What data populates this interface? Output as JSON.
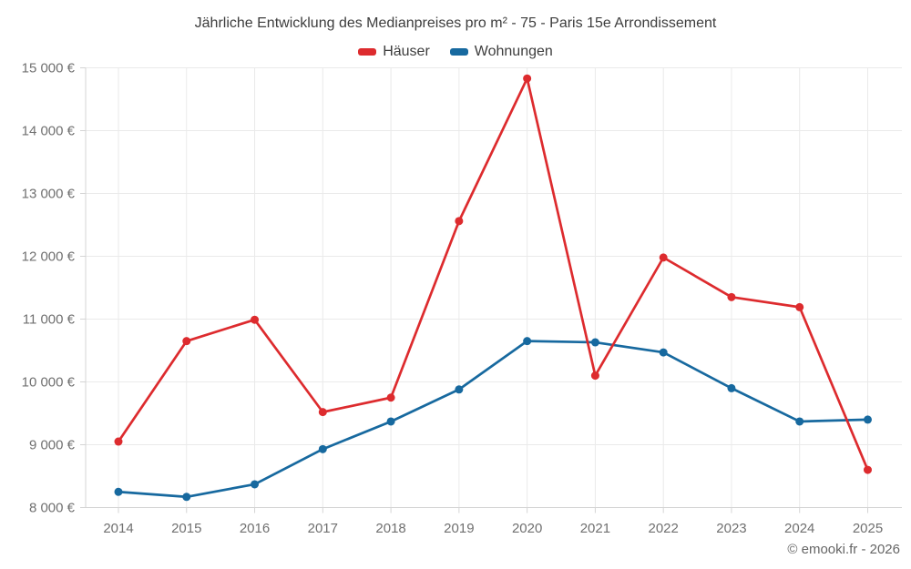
{
  "page": {
    "background": "#ffffff",
    "copyright": "© emooki.fr - 2026"
  },
  "chart_data": {
    "type": "line",
    "title": "Jährliche Entwicklung des Medianpreises pro m² - 75 - Paris 15e Arrondissement",
    "categories": [
      "2014",
      "2015",
      "2016",
      "2017",
      "2018",
      "2019",
      "2020",
      "2021",
      "2022",
      "2023",
      "2024",
      "2025"
    ],
    "series": [
      {
        "name": "Häuser",
        "color": "#dd2b2e",
        "marker": "circle",
        "values": [
          9050,
          10650,
          10990,
          9520,
          9750,
          12560,
          14830,
          10100,
          11980,
          11350,
          11190,
          8600
        ]
      },
      {
        "name": "Wohnungen",
        "color": "#17699f",
        "marker": "circle",
        "values": [
          8250,
          8170,
          8370,
          8930,
          9370,
          9880,
          10650,
          10630,
          10470,
          9900,
          9370,
          9400
        ]
      }
    ],
    "ylim": [
      8000,
      15000
    ],
    "ytick_step": 1000,
    "ytick_labels": [
      "8 000 €",
      "9 000 €",
      "10 000 €",
      "11 000 €",
      "12 000 €",
      "13 000 €",
      "14 000 €",
      "15 000 €"
    ],
    "grid": true,
    "legend_position": "top-center",
    "xlabel": "",
    "ylabel": "",
    "colors": {
      "grid": "#eaeaea",
      "axis": "#d4d4d4",
      "tick_label": "#707070",
      "title": "#3d3d3d",
      "copyright": "#666666"
    }
  }
}
